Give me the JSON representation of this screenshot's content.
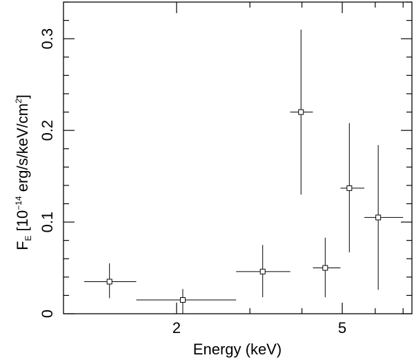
{
  "chart_data": {
    "type": "scatter",
    "xscale": "log",
    "xlim": [
      1.07,
      7.35
    ],
    "ylim": [
      0,
      0.34
    ],
    "xlabel": "Energy (keV)",
    "ylabel": {
      "prefix": "F",
      "subscript": "E",
      "bracket_open": " [10",
      "exponent": "−14",
      "units": " erg/s/keV/cm",
      "units_exponent": "2",
      "bracket_close": "]"
    },
    "x_ticks": [
      {
        "value": 2,
        "label": "2"
      },
      {
        "value": 5,
        "label": "5"
      }
    ],
    "y_ticks": [
      {
        "value": 0,
        "label": "0"
      },
      {
        "value": 0.1,
        "label": "0.1"
      },
      {
        "value": 0.2,
        "label": "0.2"
      },
      {
        "value": 0.3,
        "label": "0.3"
      }
    ],
    "x_minor_ticks": [
      2,
      3,
      4,
      5,
      6,
      7
    ],
    "y_minor_step": 0.02,
    "points": [
      {
        "x": 1.38,
        "y": 0.035,
        "xerr_low": 1.2,
        "xerr_high": 1.6,
        "yerr_low": 0.017,
        "yerr_high": 0.055
      },
      {
        "x": 2.07,
        "y": 0.015,
        "xerr_low": 1.6,
        "xerr_high": 2.78,
        "yerr_low": 0.0,
        "yerr_high": 0.027
      },
      {
        "x": 3.22,
        "y": 0.046,
        "xerr_low": 2.78,
        "xerr_high": 3.75,
        "yerr_low": 0.018,
        "yerr_high": 0.075
      },
      {
        "x": 3.98,
        "y": 0.22,
        "xerr_low": 3.75,
        "xerr_high": 4.25,
        "yerr_low": 0.13,
        "yerr_high": 0.31
      },
      {
        "x": 4.55,
        "y": 0.05,
        "xerr_low": 4.25,
        "xerr_high": 4.95,
        "yerr_low": 0.018,
        "yerr_high": 0.083
      },
      {
        "x": 5.2,
        "y": 0.137,
        "xerr_low": 4.95,
        "xerr_high": 5.65,
        "yerr_low": 0.067,
        "yerr_high": 0.208
      },
      {
        "x": 6.1,
        "y": 0.105,
        "xerr_low": 5.65,
        "xerr_high": 7.0,
        "yerr_low": 0.026,
        "yerr_high": 0.184
      }
    ]
  }
}
